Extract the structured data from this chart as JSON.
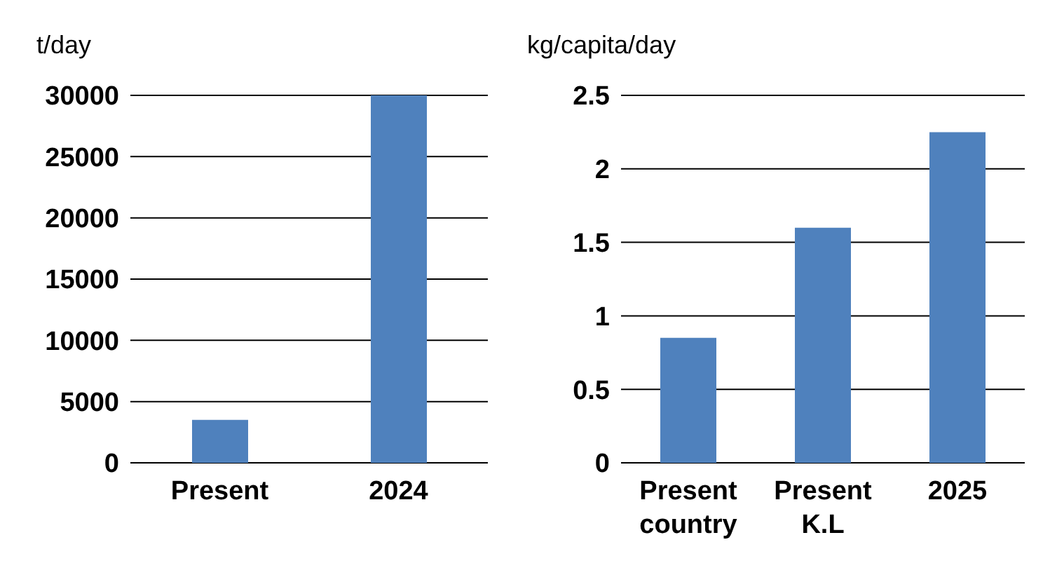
{
  "chart_data": [
    {
      "type": "bar",
      "ylabel": "t/day",
      "categories": [
        "Present",
        "2024"
      ],
      "values": [
        3500,
        30000
      ],
      "color": "#4f81bd",
      "ylim": [
        0,
        30000
      ],
      "yticks": [
        0,
        5000,
        10000,
        15000,
        20000,
        25000,
        30000
      ],
      "grid": "y"
    },
    {
      "type": "bar",
      "ylabel": "kg/capita/day",
      "categories": [
        "Present country",
        "Present K.L",
        "2025"
      ],
      "values": [
        0.85,
        1.6,
        2.25
      ],
      "color": "#4f81bd",
      "ylim": [
        0,
        2.5
      ],
      "yticks": [
        0,
        0.5,
        1,
        1.5,
        2,
        2.5
      ],
      "grid": "y"
    }
  ]
}
